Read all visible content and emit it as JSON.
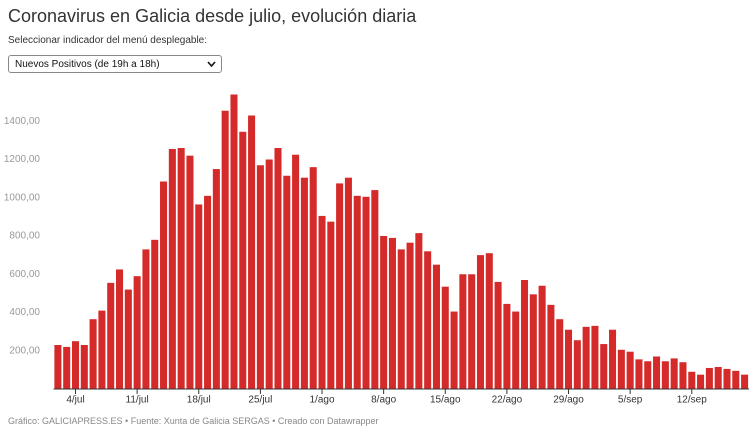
{
  "header": {
    "title": "Coronavirus en Galicia desde julio, evolución diaria",
    "dropdown_label": "Seleccionar indicador del menú desplegable:",
    "dropdown_value": "Nuevos Positivos (de 19h a 18h)"
  },
  "chart_data": {
    "type": "bar",
    "categories": [
      null,
      null,
      "4/jul",
      null,
      null,
      null,
      null,
      null,
      null,
      "11/jul",
      null,
      null,
      null,
      null,
      null,
      null,
      "18/jul",
      null,
      null,
      null,
      null,
      null,
      null,
      "25/jul",
      null,
      null,
      null,
      null,
      null,
      null,
      "1/ago",
      null,
      null,
      null,
      null,
      null,
      null,
      "8/ago",
      null,
      null,
      null,
      null,
      null,
      null,
      "15/ago",
      null,
      null,
      null,
      null,
      null,
      null,
      "22/ago",
      null,
      null,
      null,
      null,
      null,
      null,
      "29/ago",
      null,
      null,
      null,
      null,
      null,
      null,
      "5/sep",
      null,
      null,
      null,
      null,
      null,
      null,
      "12/sep",
      null,
      null,
      null,
      null,
      null,
      null
    ],
    "values": [
      230,
      220,
      250,
      230,
      365,
      410,
      555,
      625,
      520,
      590,
      730,
      780,
      1085,
      1255,
      1260,
      1220,
      965,
      1010,
      1150,
      1455,
      1540,
      1345,
      1430,
      1170,
      1200,
      1260,
      1115,
      1225,
      1105,
      1160,
      905,
      875,
      1075,
      1105,
      1010,
      1005,
      1040,
      800,
      790,
      730,
      765,
      815,
      720,
      650,
      535,
      405,
      600,
      600,
      700,
      710,
      560,
      445,
      405,
      570,
      495,
      540,
      440,
      365,
      310,
      255,
      325,
      330,
      235,
      310,
      205,
      195,
      155,
      145,
      170,
      145,
      160,
      140,
      90,
      75,
      110,
      115,
      105,
      95,
      75
    ],
    "color": "#d52a2a",
    "ylim": [
      0,
      1600
    ],
    "yticks": [
      {
        "value": 200,
        "label": "200,00"
      },
      {
        "value": 400,
        "label": "400,00"
      },
      {
        "value": 600,
        "label": "600,00"
      },
      {
        "value": 800,
        "label": "800,00"
      },
      {
        "value": 1000,
        "label": "1000,00"
      },
      {
        "value": 1200,
        "label": "1200,00"
      },
      {
        "value": 1400,
        "label": "1400,00"
      }
    ],
    "grid": false
  },
  "footer": "Gráfico: GALICIAPRESS.ES • Fuente: Xunta de Galicia SERGAS • Creado con Datawrapper"
}
